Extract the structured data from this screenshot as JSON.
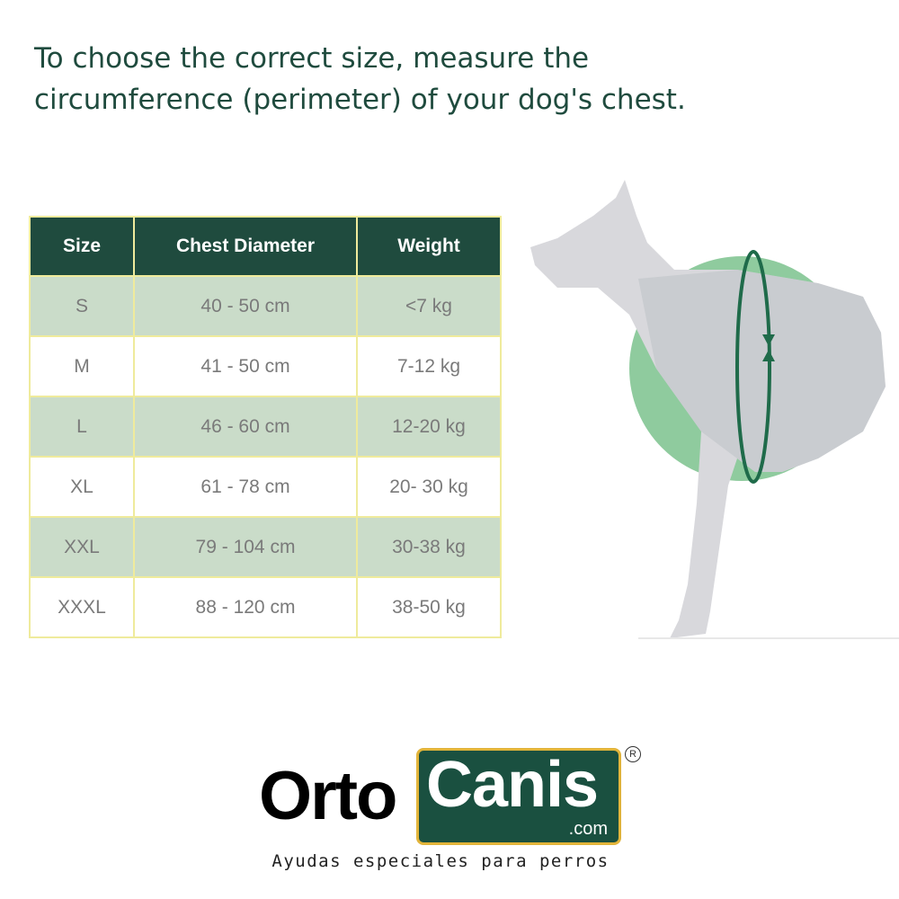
{
  "heading": {
    "line1": "To choose the correct size, measure the",
    "line2": "circumference (perimeter) of your dog's chest."
  },
  "table": {
    "headers": [
      "Size",
      "Chest Diameter",
      "Weight"
    ],
    "rows": [
      [
        "S",
        "40 - 50 cm",
        "<7 kg"
      ],
      [
        "M",
        "41 - 50 cm",
        "7-12 kg"
      ],
      [
        "L",
        "46 - 60 cm",
        "12-20 kg"
      ],
      [
        "XL",
        "61 - 78 cm",
        "20- 30 kg"
      ],
      [
        "XXL",
        "79 - 104 cm",
        "30-38 kg"
      ],
      [
        "XXXL",
        "88 - 120 cm",
        "38-50 kg"
      ]
    ]
  },
  "logo": {
    "part1": "Orto",
    "part2": "Canis",
    "domain": ".com",
    "registered": "R",
    "tagline": "Ayudas especiales para perros"
  },
  "colors": {
    "header": "#1f4b3e",
    "alt_row": "#cadcc9",
    "border": "#efeb9c",
    "circle": "#8fcb9e",
    "logo_box": "#1a5040",
    "logo_border": "#e2b43a"
  }
}
